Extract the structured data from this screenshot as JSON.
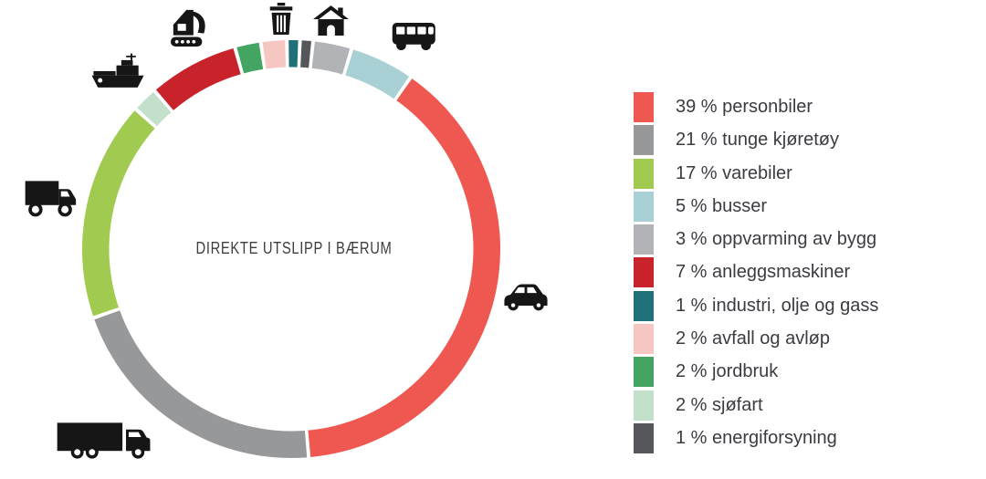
{
  "chart_data": {
    "type": "pie",
    "variant": "donut",
    "title": "DIREKTE UTSLIPP I BÆRUM",
    "unit": "%",
    "legend_position": "right",
    "legend_format": "{pct} % {label}",
    "segments": [
      {
        "label": "personbiler",
        "pct": 39,
        "color": "#EF5850",
        "icon": "car-icon"
      },
      {
        "label": "tunge kjøretøy",
        "pct": 21,
        "color": "#969899",
        "icon": "truck-icon"
      },
      {
        "label": "varebiler",
        "pct": 17,
        "color": "#A1CB50",
        "icon": "van-icon"
      },
      {
        "label": "busser",
        "pct": 5,
        "color": "#A9D0D4",
        "icon": "bus-icon"
      },
      {
        "label": "oppvarming av bygg",
        "pct": 3,
        "color": "#B1B3B6",
        "icon": "house-icon"
      },
      {
        "label": "anleggsmaskiner",
        "pct": 7,
        "color": "#C8232A",
        "icon": "excavator-icon"
      },
      {
        "label": "industri, olje og gass",
        "pct": 1,
        "color": "#1F7078",
        "icon": null
      },
      {
        "label": "avfall og avløp",
        "pct": 2,
        "color": "#F6C7C2",
        "icon": "trash-icon"
      },
      {
        "label": "jordbruk",
        "pct": 2,
        "color": "#44A563",
        "icon": null
      },
      {
        "label": "sjøfart",
        "pct": 2,
        "color": "#C3E0CB",
        "icon": "ship-icon"
      },
      {
        "label": "energiforsyning",
        "pct": 1,
        "color": "#55575A",
        "icon": null
      }
    ],
    "ring_order": [
      "personbiler",
      "tunge kjøretøy",
      "varebiler",
      "sjøfart",
      "anleggsmaskiner",
      "jordbruk",
      "avfall og avløp",
      "industri, olje og gass",
      "energiforsyning",
      "oppvarming av bygg",
      "busser"
    ],
    "start_angle_deg": 34.8,
    "direction": "clockwise"
  }
}
